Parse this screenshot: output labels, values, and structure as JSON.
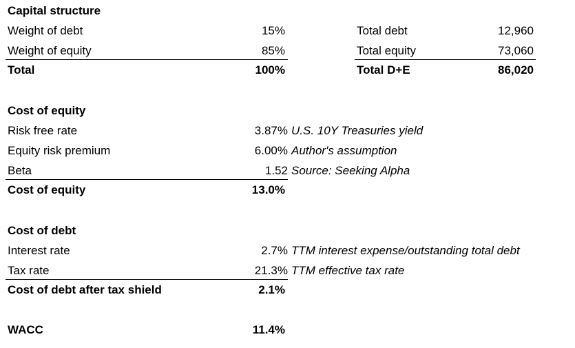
{
  "capital_structure": {
    "title": "Capital structure",
    "rows": [
      {
        "label": "Weight of debt",
        "value": "15%"
      },
      {
        "label": "Weight of equity",
        "value": "85%"
      }
    ],
    "total": {
      "label": "Total",
      "value": "100%"
    },
    "right_rows": [
      {
        "label": "Total debt",
        "value": "12,960"
      },
      {
        "label": "Total equity",
        "value": "73,060"
      }
    ],
    "right_total": {
      "label": "Total D+E",
      "value": "86,020"
    }
  },
  "cost_of_equity": {
    "title": "Cost of equity",
    "rows": [
      {
        "label": "Risk free rate",
        "value": "3.87%",
        "note": "U.S. 10Y Treasuries yield"
      },
      {
        "label": "Equity risk premium",
        "value": "6.00%",
        "note": "Author's assumption"
      },
      {
        "label": "Beta",
        "value": "1.52",
        "note": "Source: Seeking Alpha"
      }
    ],
    "total": {
      "label": "Cost of equity",
      "value": "13.0%"
    }
  },
  "cost_of_debt": {
    "title": "Cost of debt",
    "rows": [
      {
        "label": "Interest rate",
        "value": "2.7%",
        "note": "TTM interest expense/outstanding total debt"
      },
      {
        "label": "Tax rate",
        "value": "21.3%",
        "note": "TTM effective tax rate"
      }
    ],
    "total": {
      "label": "Cost of debt after tax shield",
      "value": "2.1%"
    }
  },
  "wacc": {
    "label": "WACC",
    "value": "11.4%"
  }
}
